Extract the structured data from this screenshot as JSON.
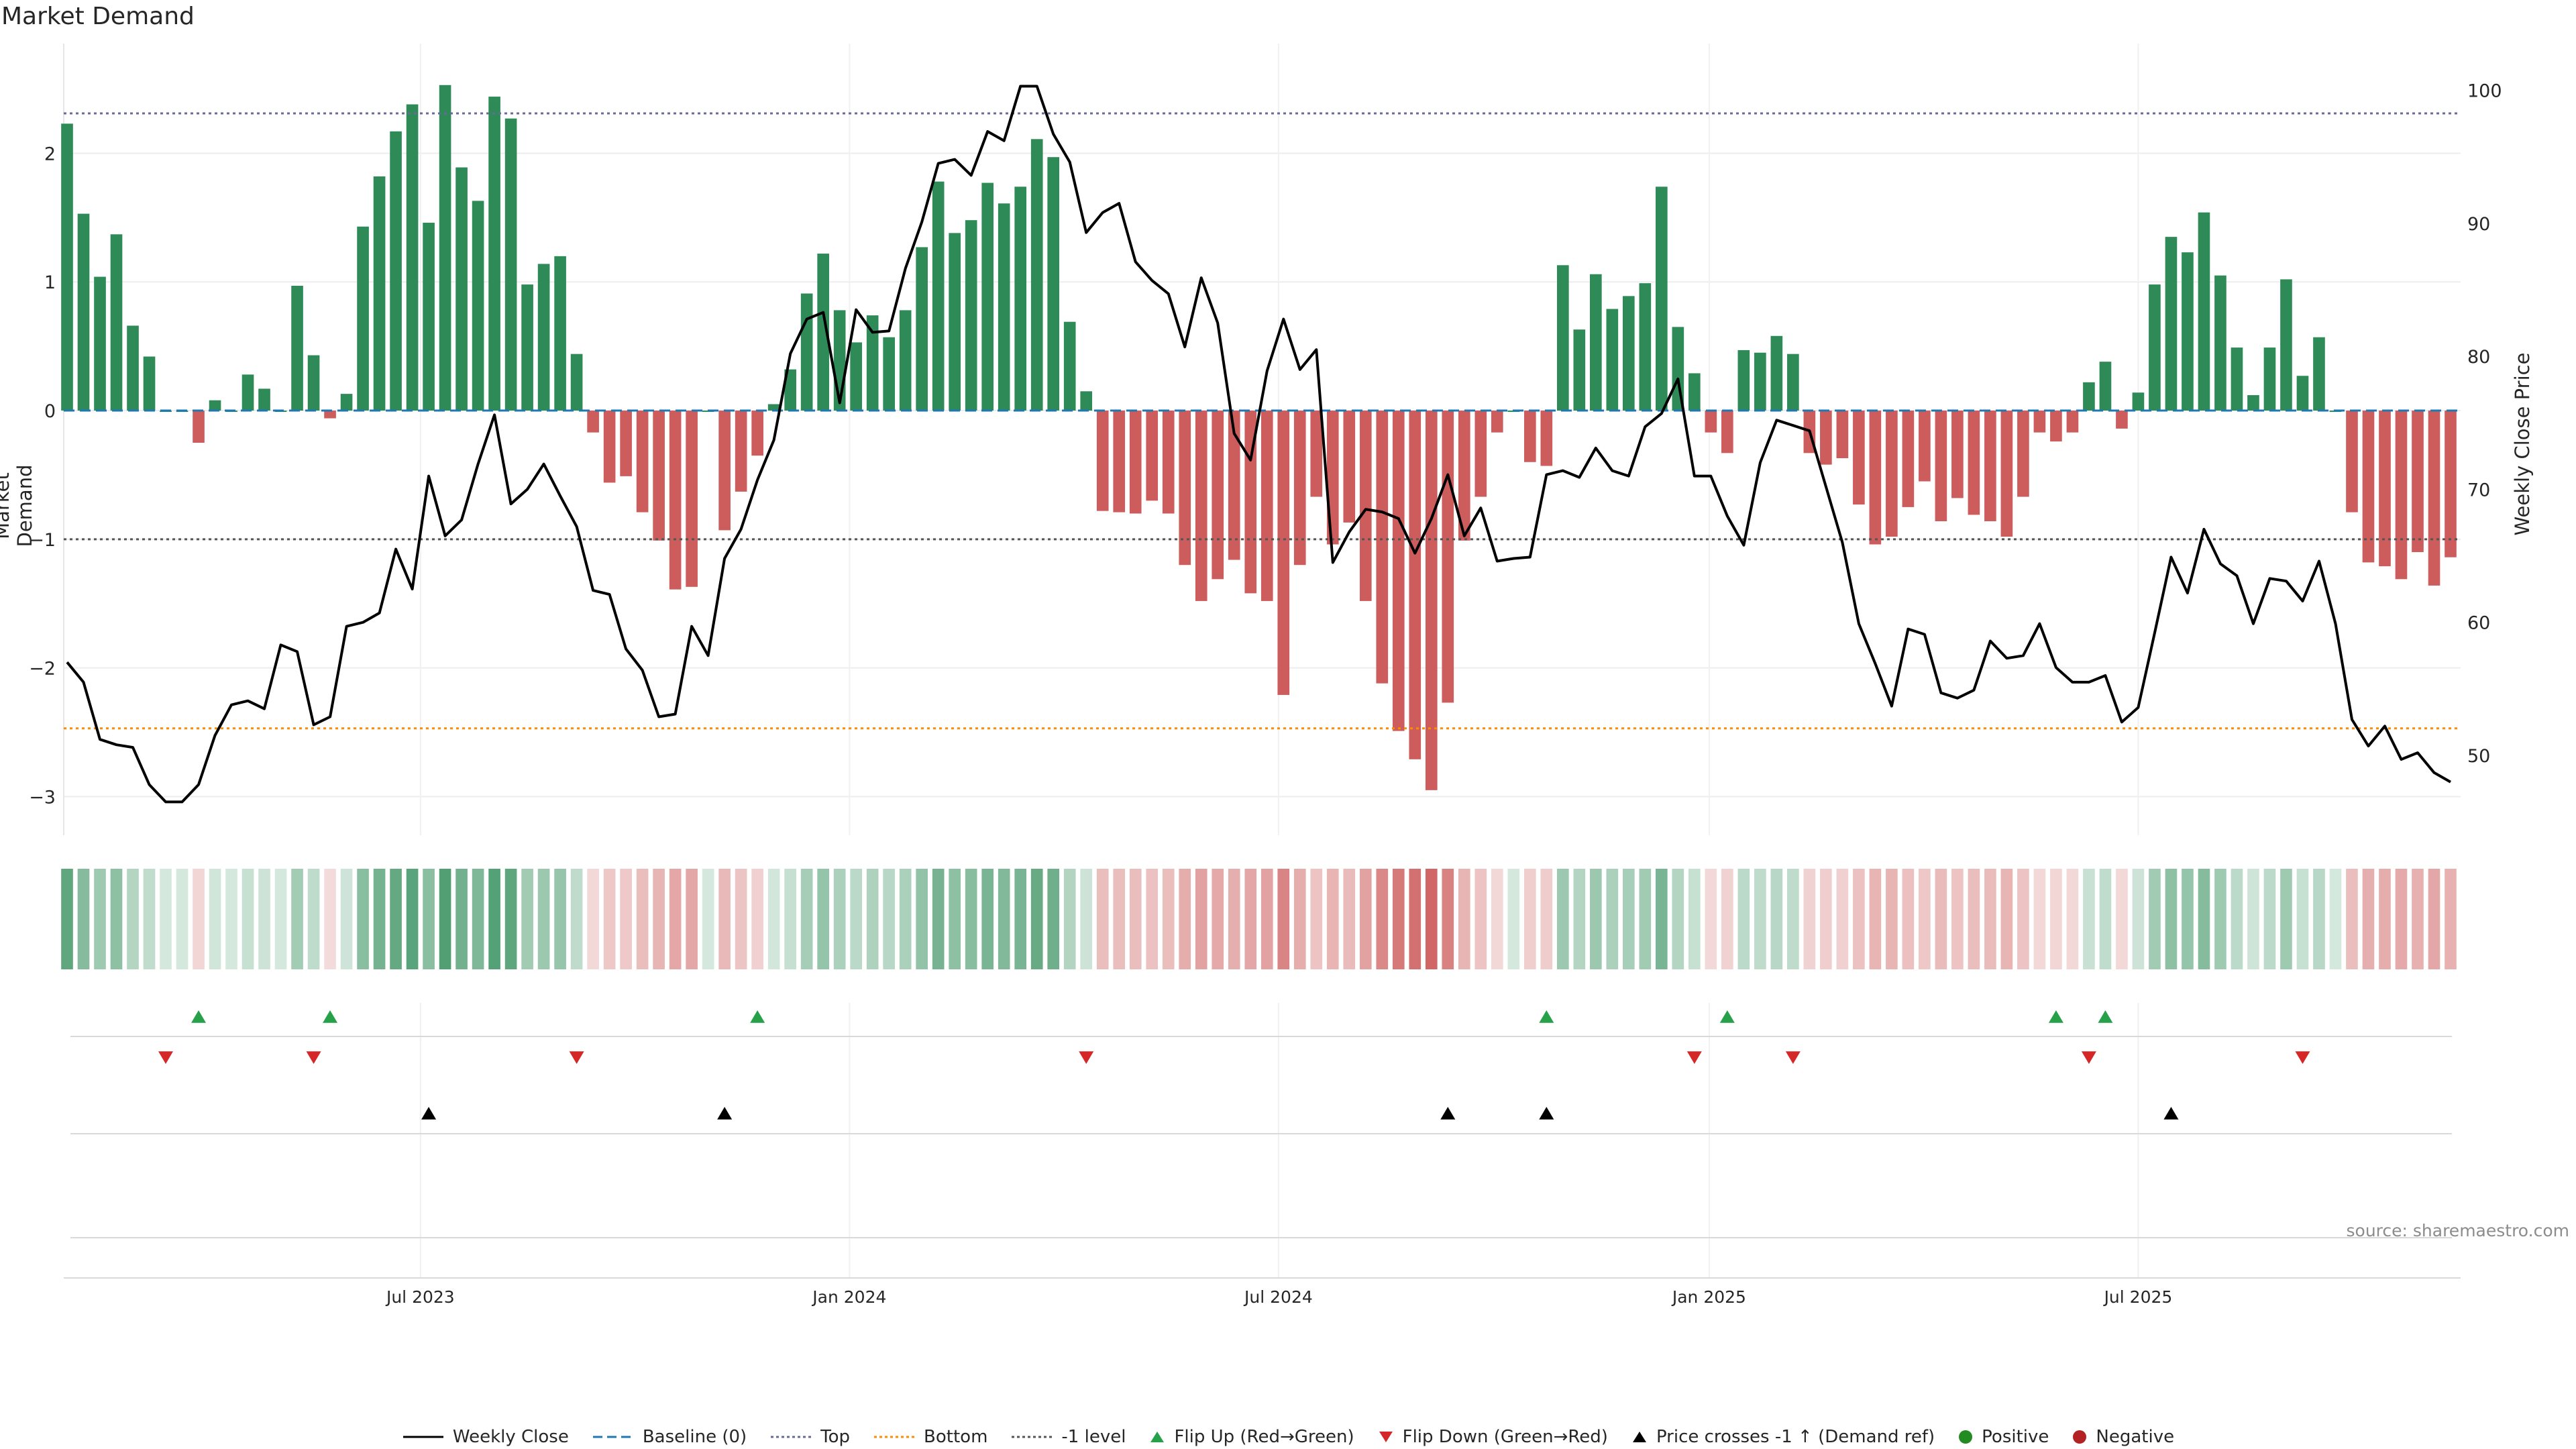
{
  "chart_data": [
    {
      "type": "bar",
      "title": "Market Demand",
      "ylabel": "Market Demand",
      "y2label": "Weekly Close Price",
      "ylim": [
        -3.3,
        2.8
      ],
      "y2lim": [
        44,
        103
      ],
      "yticks": [
        2,
        1,
        0,
        -1,
        -2,
        -3
      ],
      "y2ticks": [
        100,
        90,
        80,
        70,
        60,
        50
      ],
      "reference_lines": {
        "top": 2.31,
        "bottom": -2.47,
        "minus_one": -1,
        "baseline": 0
      },
      "demand": [
        2.23,
        1.53,
        1.04,
        1.37,
        0.66,
        0.42,
        0.0,
        0.0,
        -0.25,
        0.08,
        0.0,
        0.28,
        0.17,
        0.0,
        0.97,
        0.43,
        -0.06,
        0.13,
        1.43,
        1.82,
        2.17,
        2.38,
        1.46,
        2.53,
        1.89,
        1.63,
        2.44,
        2.27,
        0.98,
        1.14,
        1.2,
        0.44,
        -0.17,
        -0.56,
        -0.51,
        -0.79,
        -1.01,
        -1.39,
        -1.37,
        0.0,
        -0.93,
        -0.63,
        -0.35,
        0.05,
        0.32,
        0.91,
        1.22,
        0.78,
        0.53,
        0.74,
        0.57,
        0.78,
        1.27,
        1.78,
        1.38,
        1.48,
        1.77,
        1.61,
        1.74,
        2.11,
        1.97,
        0.69,
        0.15,
        -0.78,
        -0.79,
        -0.8,
        -0.7,
        -0.8,
        -1.2,
        -1.48,
        -1.31,
        -1.16,
        -1.42,
        -1.48,
        -2.21,
        -1.2,
        -0.67,
        -1.04,
        -0.87,
        -1.48,
        -2.12,
        -2.49,
        -2.71,
        -2.95,
        -2.27,
        -1.01,
        -0.67,
        -0.17,
        0.0,
        -0.4,
        -0.43,
        1.13,
        0.63,
        1.06,
        0.79,
        0.89,
        0.99,
        1.74,
        0.65,
        0.29,
        -0.17,
        -0.33,
        0.47,
        0.45,
        0.58,
        0.44,
        -0.33,
        -0.42,
        -0.37,
        -0.73,
        -1.04,
        -0.98,
        -0.75,
        -0.55,
        -0.86,
        -0.68,
        -0.81,
        -0.86,
        -0.98,
        -0.67,
        -0.17,
        -0.24,
        -0.17,
        0.22,
        0.38,
        -0.14,
        0.14,
        0.98,
        1.35,
        1.23,
        1.54,
        1.05,
        0.49,
        0.12,
        0.49,
        1.02,
        0.27,
        0.57,
        0.0,
        -0.79,
        -1.18,
        -1.21,
        -1.31,
        -1.1,
        -1.36,
        -1.14
      ],
      "weekly_close": [
        57,
        55.5,
        51.2,
        50.8,
        50.6,
        47.8,
        46.5,
        46.5,
        47.8,
        51.5,
        53.8,
        54.1,
        53.5,
        58.3,
        57.8,
        52.3,
        52.9,
        59.7,
        60,
        60.7,
        65.5,
        62.5,
        71,
        66.5,
        67.7,
        71.9,
        75.6,
        68.9,
        70,
        71.9,
        69.5,
        67.2,
        62.4,
        62.1,
        58,
        56.4,
        52.9,
        53.1,
        59.7,
        57.5,
        64.8,
        67,
        70.7,
        73.7,
        80.2,
        82.8,
        83.3,
        76.5,
        83.5,
        81.8,
        81.9,
        86.6,
        90.1,
        94.5,
        94.8,
        93.6,
        96.9,
        96.2,
        100.3,
        100.3,
        96.7,
        94.6,
        89.3,
        90.8,
        91.5,
        87.1,
        85.7,
        84.7,
        80.7,
        85.9,
        82.5,
        74.2,
        72.2,
        78.9,
        82.8,
        79,
        80.5,
        64.5,
        66.8,
        68.5,
        68.3,
        67.8,
        65.2,
        67.8,
        71.1,
        66.5,
        68.6,
        64.6,
        64.8,
        64.9,
        71.1,
        71.4,
        70.9,
        73.1,
        71.4,
        71,
        74.7,
        75.7,
        78.3,
        71,
        71,
        68,
        65.8,
        72,
        75.2,
        74.8,
        74.4,
        70.2,
        66,
        59.9,
        56.9,
        53.7,
        59.5,
        59.1,
        54.7,
        54.3,
        54.9,
        58.6,
        57.3,
        57.5,
        59.9,
        56.6,
        55.5,
        55.5,
        56,
        52.5,
        53.6,
        59.2,
        64.9,
        62.2,
        67,
        64.4,
        63.5,
        59.9,
        63.3,
        63.1,
        61.6,
        64.6,
        59.9,
        52.7,
        50.7,
        52.2,
        49.7,
        50.2,
        48.7,
        48
      ]
    },
    {
      "type": "heatmap",
      "note": "strip of weekly demand shading; greens positive, reds negative (same values as demand series)"
    },
    {
      "type": "scatter",
      "series": [
        {
          "name": "Flip Up (Red→Green)",
          "week_index": [
            8,
            16,
            42,
            90,
            101,
            121,
            124
          ]
        },
        {
          "name": "Flip Down (Green→Red)",
          "week_index": [
            6,
            15,
            31,
            62,
            99,
            105,
            123,
            136
          ]
        },
        {
          "name": "Price crosses -1 ↑ (Demand ref)",
          "week_index": [
            22,
            40,
            84,
            90,
            128
          ]
        }
      ]
    }
  ],
  "x_axis": {
    "tick_labels": [
      "Jul 2023",
      "Jan 2024",
      "Jul 2024",
      "Jan 2025",
      "Jul 2025"
    ],
    "tick_week_index": [
      21.5,
      47.6,
      73.7,
      99.9,
      126
    ]
  },
  "title": "Market Demand",
  "source": "source: sharemaestro.com",
  "legend": [
    {
      "label": "Weekly Close",
      "symbol": "line-black"
    },
    {
      "label": "Baseline (0)",
      "symbol": "line-dash-blue"
    },
    {
      "label": "Top",
      "symbol": "line-dot-purple"
    },
    {
      "label": "Bottom",
      "symbol": "line-dot-orange"
    },
    {
      "label": "-1 level",
      "symbol": "line-dot-gray"
    },
    {
      "label": "Flip Up (Red→Green)",
      "symbol": "triangle-up-green"
    },
    {
      "label": "Flip Down (Green→Red)",
      "symbol": "triangle-down-red"
    },
    {
      "label": "Price crosses -1 ↑ (Demand ref)",
      "symbol": "triangle-up-black"
    },
    {
      "label": "Positive",
      "symbol": "circle-green"
    },
    {
      "label": "Negative",
      "symbol": "circle-red"
    }
  ],
  "colors": {
    "positive": "#2e8b57",
    "negative": "#cd5c5c",
    "price": "#000000",
    "baseline": "#1f77b4",
    "top": "#6a6a9a",
    "bottom": "#ff8c00",
    "minus_one": "#555555",
    "flip_up": "#27a149",
    "flip_down": "#d62728",
    "cross": "#000000",
    "legend_pos": "#228b22",
    "legend_neg": "#b22222"
  }
}
